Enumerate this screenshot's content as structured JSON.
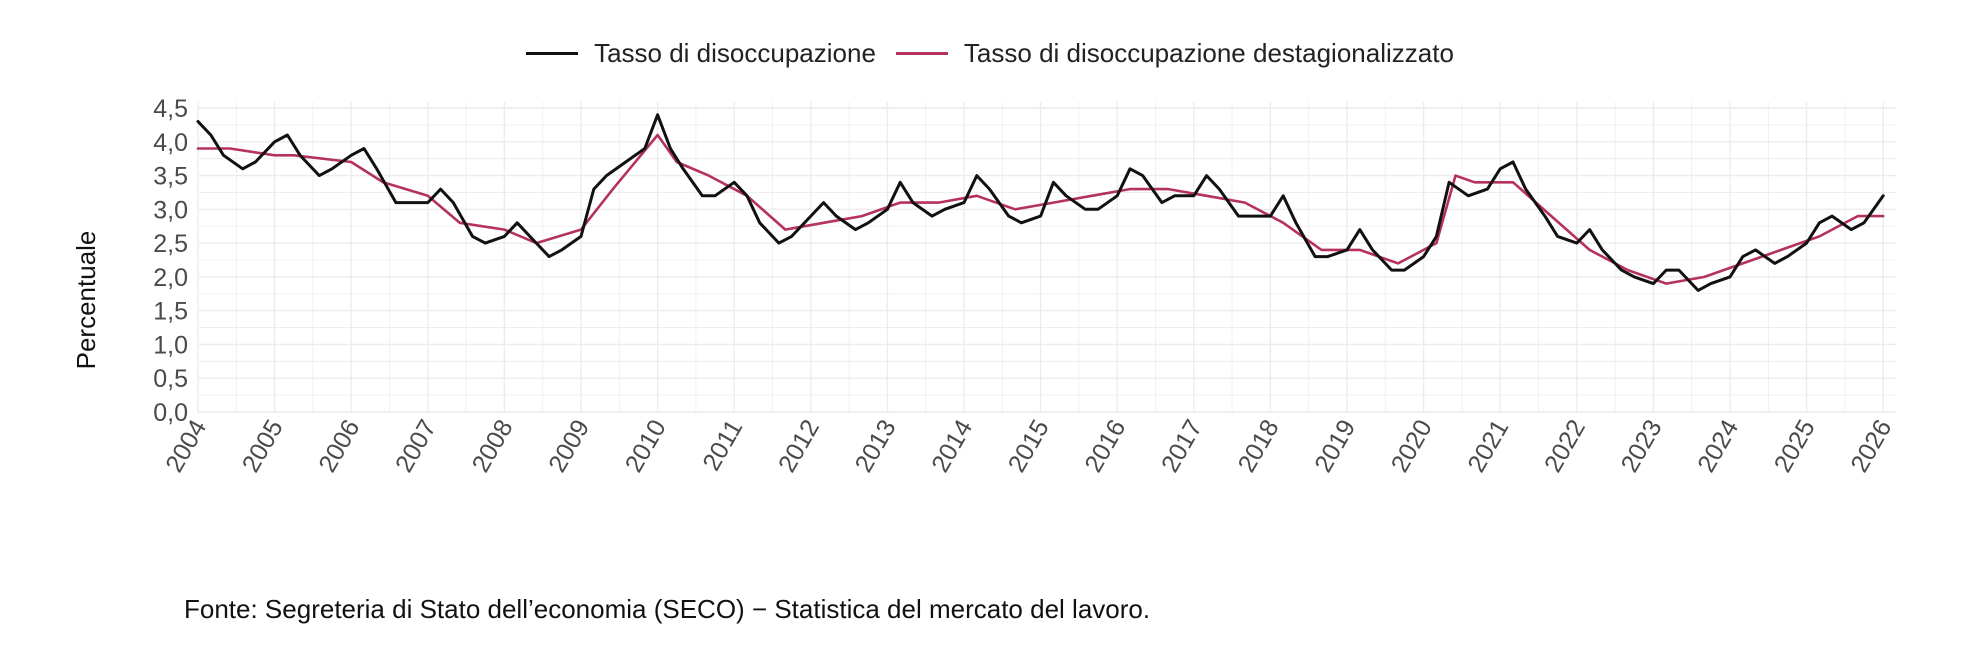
{
  "chart_data": {
    "type": "line",
    "title": "",
    "xlabel": "",
    "ylabel": "Percentuale",
    "xlim": [
      "2004-01",
      "2026-03"
    ],
    "ylim": [
      0.0,
      4.5
    ],
    "y_ticks": [
      "0,0",
      "0,5",
      "1,0",
      "1,5",
      "2,0",
      "2,5",
      "3,0",
      "3,5",
      "4,0",
      "4,5"
    ],
    "x_ticks": [
      "2004",
      "2005",
      "2006",
      "2007",
      "2008",
      "2009",
      "2010",
      "2011",
      "2012",
      "2013",
      "2014",
      "2015",
      "2016",
      "2017",
      "2018",
      "2019",
      "2020",
      "2021",
      "2022",
      "2023",
      "2024",
      "2025",
      "2026"
    ],
    "grid": true,
    "legend_position": "top-center",
    "series": [
      {
        "name": "Tasso di disoccupazione",
        "color": "#111111",
        "x": [
          "2004-01",
          "2004-03",
          "2004-05",
          "2004-08",
          "2004-10",
          "2005-01",
          "2005-03",
          "2005-05",
          "2005-08",
          "2005-10",
          "2006-01",
          "2006-03",
          "2006-05",
          "2006-08",
          "2006-11",
          "2007-01",
          "2007-03",
          "2007-05",
          "2007-08",
          "2007-10",
          "2008-01",
          "2008-03",
          "2008-05",
          "2008-08",
          "2008-10",
          "2009-01",
          "2009-03",
          "2009-05",
          "2009-08",
          "2009-11",
          "2010-01",
          "2010-03",
          "2010-05",
          "2010-08",
          "2010-10",
          "2011-01",
          "2011-03",
          "2011-05",
          "2011-08",
          "2011-10",
          "2012-01",
          "2012-03",
          "2012-05",
          "2012-08",
          "2012-10",
          "2013-01",
          "2013-03",
          "2013-05",
          "2013-08",
          "2013-10",
          "2014-01",
          "2014-03",
          "2014-05",
          "2014-08",
          "2014-10",
          "2015-01",
          "2015-03",
          "2015-05",
          "2015-08",
          "2015-10",
          "2016-01",
          "2016-03",
          "2016-05",
          "2016-08",
          "2016-10",
          "2017-01",
          "2017-03",
          "2017-05",
          "2017-08",
          "2017-10",
          "2018-01",
          "2018-03",
          "2018-05",
          "2018-08",
          "2018-10",
          "2019-01",
          "2019-03",
          "2019-05",
          "2019-08",
          "2019-10",
          "2020-01",
          "2020-03",
          "2020-05",
          "2020-08",
          "2020-11",
          "2021-01",
          "2021-03",
          "2021-05",
          "2021-08",
          "2021-10",
          "2022-01",
          "2022-03",
          "2022-05",
          "2022-08",
          "2022-10",
          "2023-01",
          "2023-03",
          "2023-05",
          "2023-08",
          "2023-10",
          "2024-01",
          "2024-03",
          "2024-05",
          "2024-08",
          "2024-10",
          "2025-01",
          "2025-03",
          "2025-05",
          "2025-08",
          "2025-10",
          "2026-01"
        ],
        "y": [
          4.3,
          4.1,
          3.8,
          3.6,
          3.7,
          4.0,
          4.1,
          3.8,
          3.5,
          3.6,
          3.8,
          3.9,
          3.6,
          3.1,
          3.1,
          3.1,
          3.3,
          3.1,
          2.6,
          2.5,
          2.6,
          2.8,
          2.6,
          2.3,
          2.4,
          2.6,
          3.3,
          3.5,
          3.7,
          3.9,
          4.4,
          3.9,
          3.6,
          3.2,
          3.2,
          3.4,
          3.2,
          2.8,
          2.5,
          2.6,
          2.9,
          3.1,
          2.9,
          2.7,
          2.8,
          3.0,
          3.4,
          3.1,
          2.9,
          3.0,
          3.1,
          3.5,
          3.3,
          2.9,
          2.8,
          2.9,
          3.4,
          3.2,
          3.0,
          3.0,
          3.2,
          3.6,
          3.5,
          3.1,
          3.2,
          3.2,
          3.5,
          3.3,
          2.9,
          2.9,
          2.9,
          3.2,
          2.8,
          2.3,
          2.3,
          2.4,
          2.7,
          2.4,
          2.1,
          2.1,
          2.3,
          2.6,
          3.4,
          3.2,
          3.3,
          3.6,
          3.7,
          3.3,
          2.9,
          2.6,
          2.5,
          2.7,
          2.4,
          2.1,
          2.0,
          1.9,
          2.1,
          2.1,
          1.8,
          1.9,
          2.0,
          2.3,
          2.4,
          2.2,
          2.3,
          2.5,
          2.8,
          2.9,
          2.7,
          2.8,
          3.2
        ]
      },
      {
        "name": "Tasso di disoccupazione destagionalizzato",
        "color": "#b5325a",
        "x": [
          "2004-01",
          "2004-06",
          "2005-01",
          "2005-04",
          "2006-01",
          "2006-06",
          "2007-01",
          "2007-06",
          "2008-01",
          "2008-06",
          "2009-01",
          "2009-06",
          "2010-01",
          "2010-04",
          "2010-09",
          "2011-03",
          "2011-09",
          "2012-03",
          "2012-09",
          "2013-03",
          "2013-09",
          "2014-03",
          "2014-09",
          "2015-03",
          "2015-09",
          "2016-03",
          "2016-09",
          "2017-03",
          "2017-09",
          "2018-03",
          "2018-09",
          "2019-03",
          "2019-09",
          "2020-03",
          "2020-06",
          "2020-09",
          "2021-03",
          "2021-09",
          "2022-03",
          "2022-09",
          "2023-03",
          "2023-09",
          "2024-03",
          "2024-09",
          "2025-03",
          "2025-09",
          "2026-01"
        ],
        "y": [
          3.9,
          3.9,
          3.8,
          3.8,
          3.7,
          3.4,
          3.2,
          2.8,
          2.7,
          2.5,
          2.7,
          3.3,
          4.1,
          3.7,
          3.5,
          3.2,
          2.7,
          2.8,
          2.9,
          3.1,
          3.1,
          3.2,
          3.0,
          3.1,
          3.2,
          3.3,
          3.3,
          3.2,
          3.1,
          2.8,
          2.4,
          2.4,
          2.2,
          2.5,
          3.5,
          3.4,
          3.4,
          2.9,
          2.4,
          2.1,
          1.9,
          2.0,
          2.2,
          2.4,
          2.6,
          2.9,
          2.9
        ]
      }
    ],
    "source": "Fonte: Segreteria di Stato dell’economia (SECO) − Statistica del mercato del lavoro."
  }
}
